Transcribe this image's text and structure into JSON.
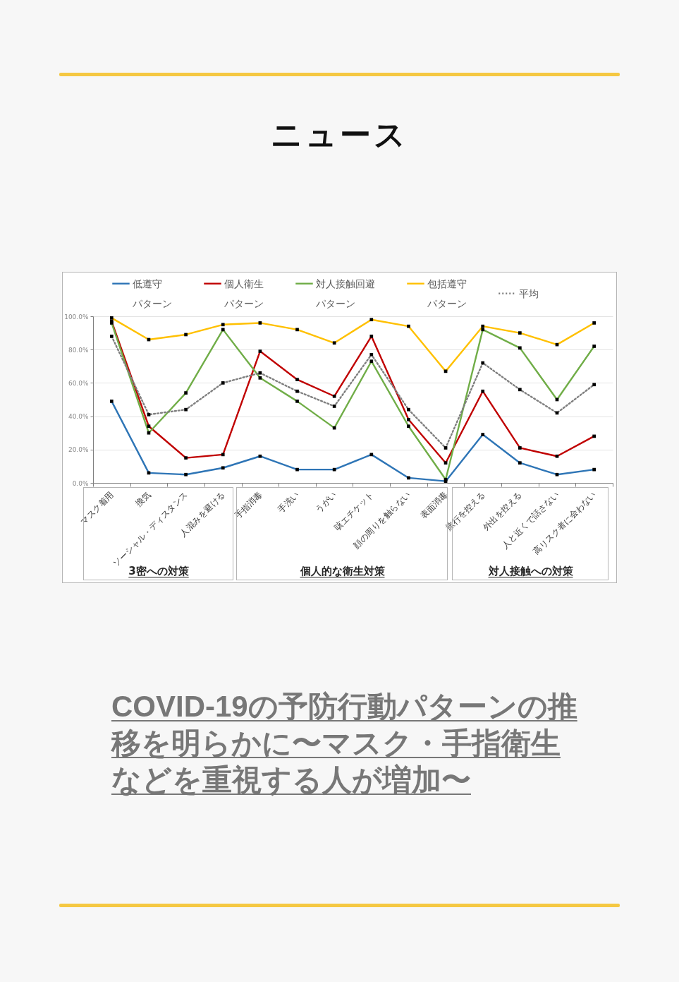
{
  "chart_data": {
    "type": "line",
    "title": "ニュース",
    "annotations": [
      "3密への対策",
      "個人的な衛生対策",
      "対人接触への対策",
      "COVID-19の予防行動パターンの推移を明らかに〜マスク・手指衛生などを重視する人が増加〜"
    ],
    "categories": [
      "マスク着用",
      "換気",
      "ソーシャル・ディスタンス",
      "人混みを避ける",
      "手指消毒",
      "手洗い",
      "うがい",
      "咳エチケット",
      "顔の周りを触らない",
      "表面消毒",
      "旅行を控える",
      "外出を控える",
      "人と近くで話さない",
      "高リスク者に会わない"
    ],
    "series": [
      {
        "name": "低遵守パターン",
        "color": "#2e75b6",
        "values": [
          49,
          6,
          5,
          9,
          16,
          8,
          8,
          17,
          3,
          1,
          29,
          12,
          5,
          8
        ]
      },
      {
        "name": "個人衛生パターン",
        "color": "#c00000",
        "values": [
          97,
          34,
          15,
          17,
          79,
          62,
          52,
          88,
          38,
          12,
          55,
          21,
          16,
          28
        ]
      },
      {
        "name": "対人接触回避パターン",
        "color": "#70ad47",
        "values": [
          96,
          30,
          54,
          92,
          63,
          49,
          33,
          73,
          34,
          2,
          92,
          81,
          50,
          82
        ]
      },
      {
        "name": "包括遵守パターン",
        "color": "#ffc000",
        "values": [
          99,
          86,
          89,
          95,
          96,
          92,
          84,
          98,
          94,
          67,
          94,
          90,
          83,
          96
        ]
      },
      {
        "name": "平均",
        "color": "#7f7f7f",
        "line_style": "dotted",
        "values": [
          88,
          41,
          44,
          60,
          66,
          55,
          46,
          77,
          44,
          21,
          72,
          56,
          42,
          59
        ]
      }
    ],
    "ylim": [
      0,
      100
    ],
    "yticks": [
      {
        "value": 0,
        "label": "0.0%"
      },
      {
        "value": 20,
        "label": "20.0%"
      },
      {
        "value": 40,
        "label": "40.0%"
      },
      {
        "value": 60,
        "label": "60.0%"
      },
      {
        "value": 80,
        "label": "80.0%"
      },
      {
        "value": 100,
        "label": "100.0%"
      }
    ],
    "grid": "y",
    "legend": "top",
    "marker": "square",
    "line_style": "solid"
  }
}
